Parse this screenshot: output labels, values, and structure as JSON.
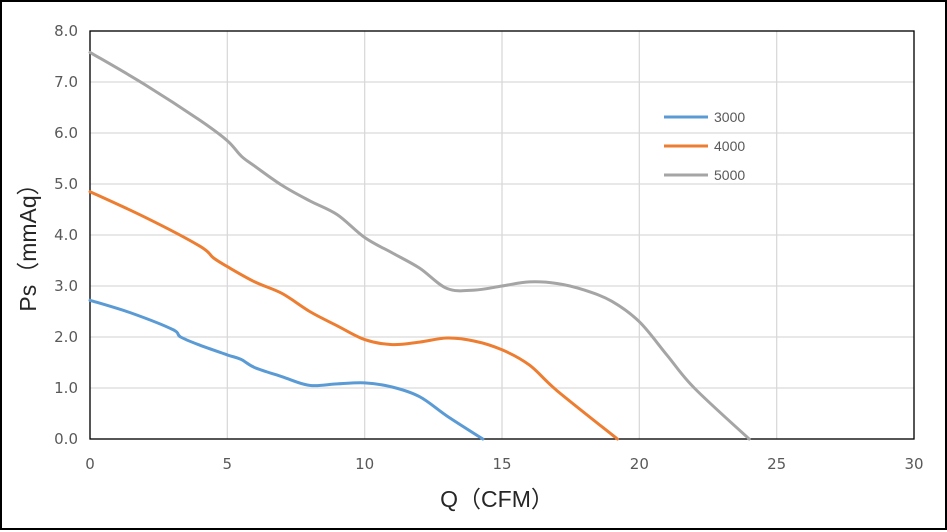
{
  "chart_data": {
    "type": "line",
    "title": "",
    "xlabel": "Q（CFM）",
    "ylabel": "Ps（mmAq）",
    "xlim": [
      0,
      30
    ],
    "ylim": [
      0,
      8
    ],
    "x_ticks": [
      "0",
      "5",
      "10",
      "15",
      "20",
      "25",
      "30"
    ],
    "y_ticks": [
      "0.0",
      "1.0",
      "2.0",
      "3.0",
      "4.0",
      "5.0",
      "6.0",
      "7.0",
      "8.0"
    ],
    "grid": true,
    "legend_position": "right",
    "series": [
      {
        "name": "3000",
        "color": "#5B9BD5",
        "points": [
          [
            0,
            2.72
          ],
          [
            1.5,
            2.47
          ],
          [
            3.0,
            2.15
          ],
          [
            3.3,
            2.0
          ],
          [
            4.0,
            1.84
          ],
          [
            5.0,
            1.65
          ],
          [
            5.5,
            1.56
          ],
          [
            6.0,
            1.4
          ],
          [
            7.0,
            1.22
          ],
          [
            8.0,
            1.05
          ],
          [
            9.0,
            1.08
          ],
          [
            10.0,
            1.1
          ],
          [
            11.0,
            1.02
          ],
          [
            12.0,
            0.83
          ],
          [
            13.0,
            0.45
          ],
          [
            14.3,
            0.0
          ]
        ]
      },
      {
        "name": "4000",
        "color": "#ED7D31",
        "points": [
          [
            0,
            4.85
          ],
          [
            2.0,
            4.35
          ],
          [
            4.0,
            3.78
          ],
          [
            4.5,
            3.55
          ],
          [
            5.0,
            3.38
          ],
          [
            6.0,
            3.08
          ],
          [
            7.0,
            2.85
          ],
          [
            8.0,
            2.5
          ],
          [
            9.0,
            2.22
          ],
          [
            10.0,
            1.95
          ],
          [
            11.0,
            1.85
          ],
          [
            12.0,
            1.9
          ],
          [
            13.0,
            1.98
          ],
          [
            14.0,
            1.92
          ],
          [
            15.0,
            1.75
          ],
          [
            16.0,
            1.45
          ],
          [
            17.0,
            0.95
          ],
          [
            19.2,
            0.0
          ]
        ]
      },
      {
        "name": "5000",
        "color": "#A5A5A5",
        "points": [
          [
            0,
            7.58
          ],
          [
            2.0,
            6.95
          ],
          [
            4.0,
            6.25
          ],
          [
            5.0,
            5.85
          ],
          [
            5.5,
            5.55
          ],
          [
            6.0,
            5.35
          ],
          [
            7.0,
            4.97
          ],
          [
            8.0,
            4.67
          ],
          [
            9.0,
            4.4
          ],
          [
            10.0,
            3.95
          ],
          [
            11.0,
            3.65
          ],
          [
            12.0,
            3.35
          ],
          [
            13.0,
            2.95
          ],
          [
            14.0,
            2.92
          ],
          [
            15.0,
            3.0
          ],
          [
            16.0,
            3.08
          ],
          [
            17.0,
            3.05
          ],
          [
            18.0,
            2.92
          ],
          [
            19.0,
            2.7
          ],
          [
            20.0,
            2.3
          ],
          [
            21.0,
            1.65
          ],
          [
            22.0,
            1.0
          ],
          [
            24.0,
            0.0
          ]
        ]
      }
    ]
  }
}
